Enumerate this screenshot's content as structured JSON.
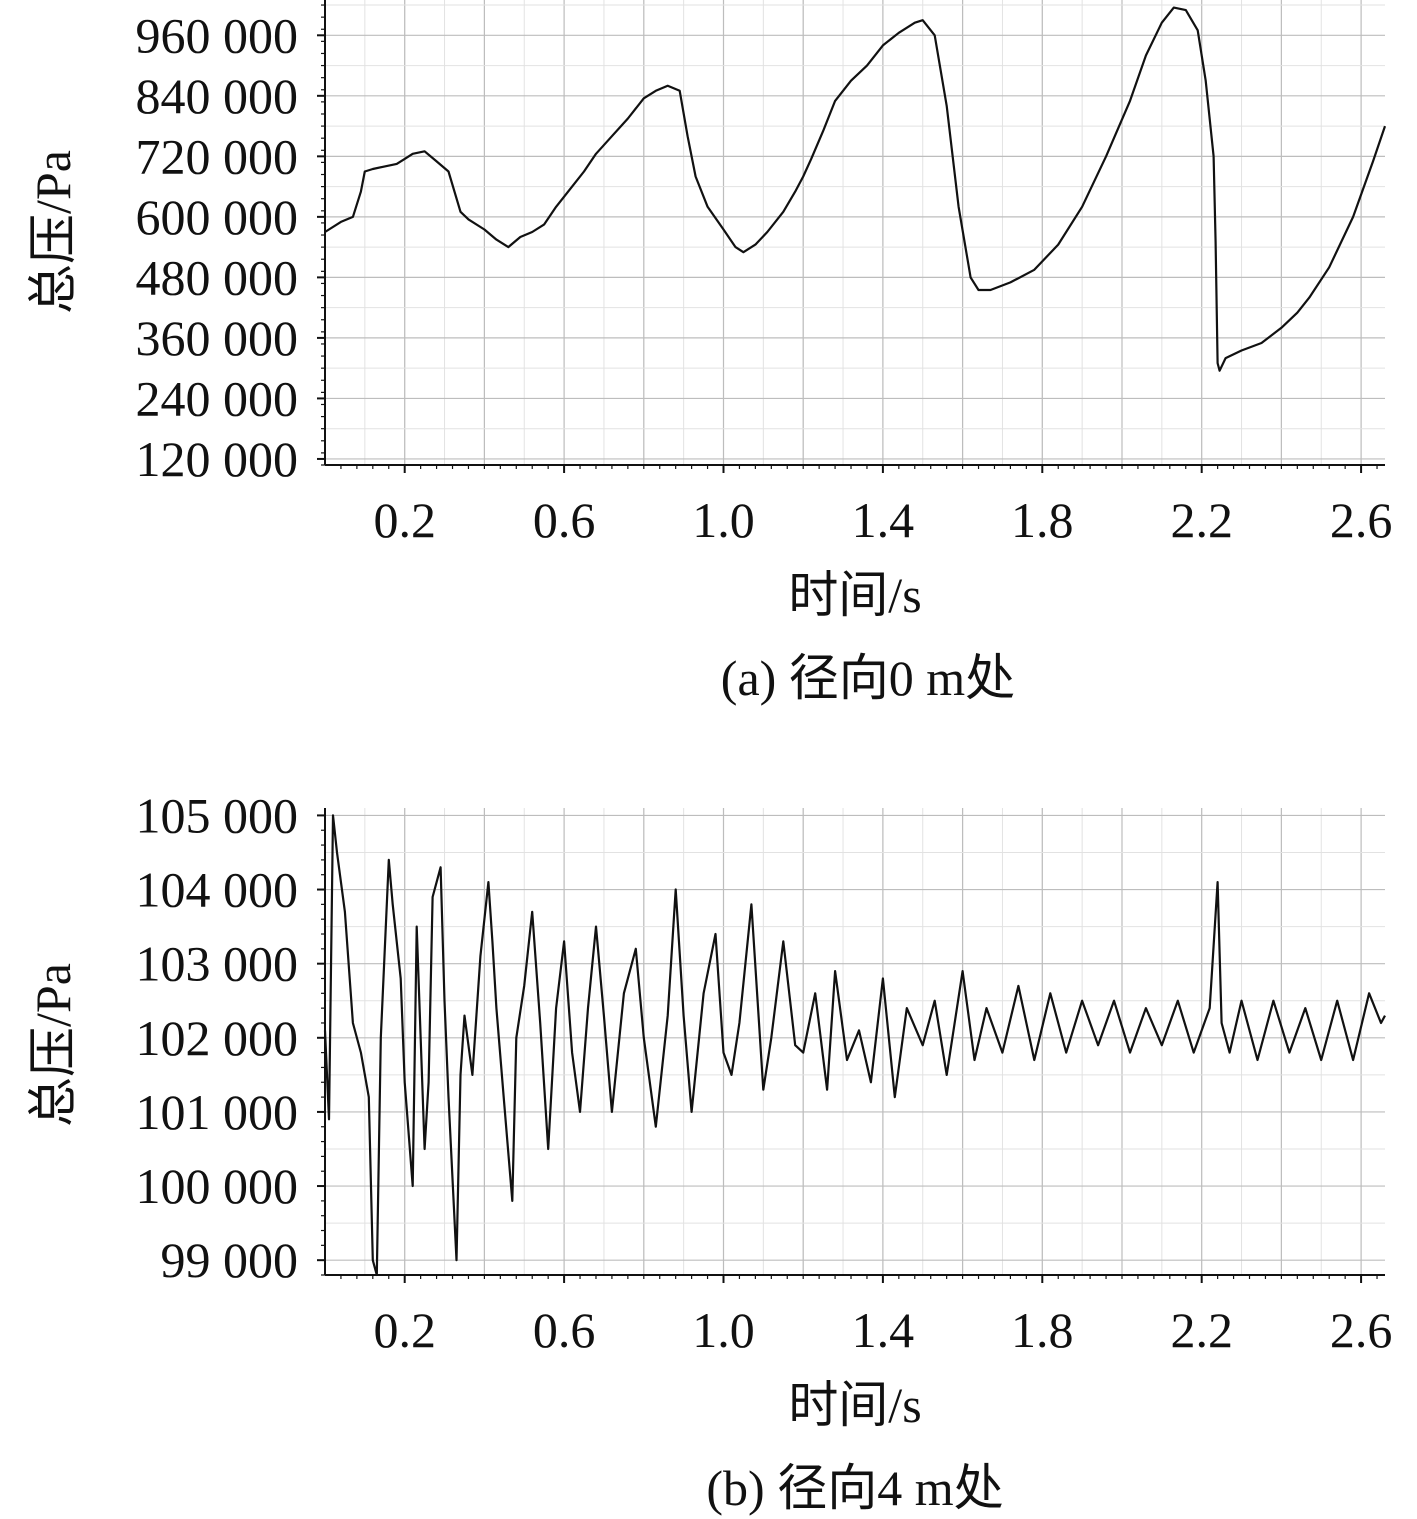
{
  "chart_data": [
    {
      "type": "line",
      "caption": "(a) 径向0 m处",
      "xlabel": "时间/s",
      "ylabel": "总压/Pa",
      "xlim": [
        0.0,
        2.66
      ],
      "ylim": [
        108000,
        1030000
      ],
      "xticks": [
        0.2,
        0.6,
        1.0,
        1.4,
        1.8,
        2.2,
        2.6
      ],
      "xtick_labels": [
        "0.2",
        "0.6",
        "1.0",
        "1.4",
        "1.8",
        "2.2",
        "2.6"
      ],
      "yticks": [
        120000,
        240000,
        360000,
        480000,
        600000,
        720000,
        840000,
        960000
      ],
      "ytick_labels": [
        "120 000",
        "240 000",
        "360 000",
        "480 000",
        "600 000",
        "720 000",
        "840 000",
        "960 000"
      ],
      "grid": true,
      "series": [
        {
          "x": [
            0.0,
            0.04,
            0.07,
            0.09,
            0.1,
            0.12,
            0.15,
            0.18,
            0.2,
            0.22,
            0.25,
            0.28,
            0.31,
            0.34,
            0.36,
            0.4,
            0.43,
            0.46,
            0.49,
            0.52,
            0.55,
            0.58,
            0.62,
            0.65,
            0.68,
            0.72,
            0.76,
            0.8,
            0.83,
            0.86,
            0.89,
            0.91,
            0.93,
            0.96,
            1.0,
            1.03,
            1.05,
            1.08,
            1.11,
            1.15,
            1.18,
            1.2,
            1.22,
            1.25,
            1.28,
            1.32,
            1.36,
            1.4,
            1.44,
            1.48,
            1.5,
            1.53,
            1.56,
            1.59,
            1.62,
            1.64,
            1.67,
            1.72,
            1.78,
            1.84,
            1.9,
            1.96,
            2.02,
            2.06,
            2.1,
            2.13,
            2.16,
            2.19,
            2.21,
            2.23,
            2.235,
            2.24,
            2.245,
            2.26,
            2.3,
            2.35,
            2.4,
            2.44,
            2.47,
            2.52,
            2.58,
            2.63,
            2.66
          ],
          "y": [
            570000,
            590000,
            600000,
            650000,
            690000,
            695000,
            700000,
            705000,
            715000,
            725000,
            730000,
            710000,
            690000,
            610000,
            595000,
            575000,
            555000,
            540000,
            560000,
            570000,
            585000,
            620000,
            660000,
            690000,
            725000,
            760000,
            795000,
            835000,
            850000,
            860000,
            850000,
            760000,
            680000,
            620000,
            575000,
            540000,
            530000,
            545000,
            570000,
            610000,
            650000,
            680000,
            715000,
            770000,
            830000,
            870000,
            900000,
            940000,
            965000,
            985000,
            990000,
            960000,
            820000,
            620000,
            480000,
            455000,
            455000,
            470000,
            495000,
            545000,
            620000,
            720000,
            830000,
            920000,
            985000,
            1015000,
            1010000,
            970000,
            870000,
            720000,
            550000,
            310000,
            295000,
            320000,
            335000,
            350000,
            380000,
            410000,
            440000,
            500000,
            600000,
            710000,
            780000
          ]
        }
      ]
    },
    {
      "type": "line",
      "caption": "(b) 径向4 m处",
      "xlabel": "时间/s",
      "ylabel": "总压/Pa",
      "xlim": [
        0.0,
        2.66
      ],
      "ylim": [
        98800,
        105100
      ],
      "xticks": [
        0.2,
        0.6,
        1.0,
        1.4,
        1.8,
        2.2,
        2.6
      ],
      "xtick_labels": [
        "0.2",
        "0.6",
        "1.0",
        "1.4",
        "1.8",
        "2.2",
        "2.6"
      ],
      "yticks": [
        99000,
        100000,
        101000,
        102000,
        103000,
        104000,
        105000
      ],
      "ytick_labels": [
        "99 000",
        "100 000",
        "101 000",
        "102 000",
        "103 000",
        "104 000",
        "105 000"
      ],
      "grid": true,
      "series": [
        {
          "x": [
            0.0,
            0.01,
            0.02,
            0.03,
            0.05,
            0.07,
            0.09,
            0.11,
            0.12,
            0.13,
            0.14,
            0.16,
            0.17,
            0.19,
            0.2,
            0.22,
            0.23,
            0.25,
            0.26,
            0.27,
            0.29,
            0.3,
            0.31,
            0.33,
            0.34,
            0.35,
            0.37,
            0.39,
            0.41,
            0.42,
            0.43,
            0.45,
            0.47,
            0.48,
            0.5,
            0.52,
            0.54,
            0.56,
            0.58,
            0.6,
            0.62,
            0.64,
            0.66,
            0.68,
            0.7,
            0.72,
            0.75,
            0.78,
            0.8,
            0.83,
            0.86,
            0.88,
            0.9,
            0.92,
            0.95,
            0.98,
            1.0,
            1.02,
            1.04,
            1.07,
            1.1,
            1.12,
            1.15,
            1.18,
            1.2,
            1.23,
            1.26,
            1.28,
            1.31,
            1.34,
            1.37,
            1.4,
            1.43,
            1.46,
            1.5,
            1.53,
            1.56,
            1.6,
            1.63,
            1.66,
            1.7,
            1.74,
            1.78,
            1.82,
            1.86,
            1.9,
            1.94,
            1.98,
            2.02,
            2.06,
            2.1,
            2.14,
            2.18,
            2.22,
            2.24,
            2.25,
            2.27,
            2.3,
            2.34,
            2.38,
            2.42,
            2.46,
            2.5,
            2.54,
            2.58,
            2.62,
            2.65,
            2.66
          ],
          "y": [
            102100,
            100900,
            105000,
            104500,
            103700,
            102200,
            101800,
            101200,
            99000,
            98800,
            102000,
            104400,
            103800,
            102800,
            101400,
            100000,
            103500,
            100500,
            101400,
            103900,
            104300,
            102500,
            101200,
            99000,
            101500,
            102300,
            101500,
            103100,
            104100,
            103300,
            102400,
            101100,
            99800,
            102000,
            102700,
            103700,
            102200,
            100500,
            102400,
            103300,
            101800,
            101000,
            102400,
            103500,
            102300,
            101000,
            102600,
            103200,
            102000,
            100800,
            102300,
            104000,
            102300,
            101000,
            102600,
            103400,
            101800,
            101500,
            102200,
            103800,
            101300,
            102000,
            103300,
            101900,
            101800,
            102600,
            101300,
            102900,
            101700,
            102100,
            101400,
            102800,
            101200,
            102400,
            101900,
            102500,
            101500,
            102900,
            101700,
            102400,
            101800,
            102700,
            101700,
            102600,
            101800,
            102500,
            101900,
            102500,
            101800,
            102400,
            101900,
            102500,
            101800,
            102400,
            104100,
            102200,
            101800,
            102500,
            101700,
            102500,
            101800,
            102400,
            101700,
            102500,
            101700,
            102600,
            102200,
            102300
          ]
        }
      ]
    }
  ]
}
